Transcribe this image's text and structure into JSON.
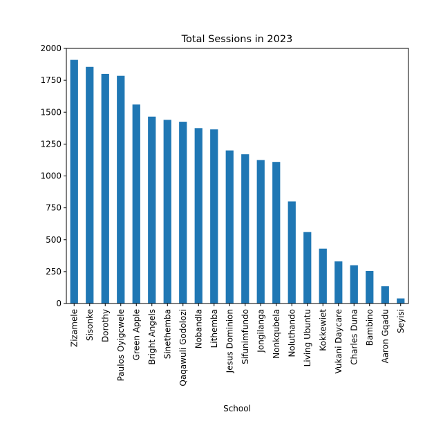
{
  "chart_data": {
    "type": "bar",
    "title": "Total Sessions in 2023",
    "xlabel": "School",
    "ylabel": "",
    "categories": [
      "Zizamele",
      "Sisonke",
      "Dorothy",
      "Paulos Oyigcwele",
      "Green Apple",
      "Bright Angels",
      "Sinethemba",
      "Qaqawuli Godolozi",
      "Nobandla",
      "Lithemba",
      "Jesus Dominion",
      "Sifunimfundo",
      "Jongilanga",
      "Nonkqubela",
      "Noluthando",
      "Living Ubuntu",
      "Kokkewiet",
      "Vukani Daycare",
      "Charles Duna",
      "Bambino",
      "Aaron Gqadu",
      "Seyisi"
    ],
    "values": [
      1910,
      1855,
      1800,
      1785,
      1560,
      1465,
      1440,
      1425,
      1375,
      1365,
      1200,
      1170,
      1125,
      1110,
      800,
      560,
      430,
      330,
      300,
      255,
      135,
      40
    ],
    "ylim": [
      0,
      2000
    ],
    "yticks": [
      0,
      250,
      500,
      750,
      1000,
      1250,
      1500,
      1750,
      2000
    ],
    "bar_color": "#1f77b4",
    "grid": false,
    "legend": "none"
  }
}
